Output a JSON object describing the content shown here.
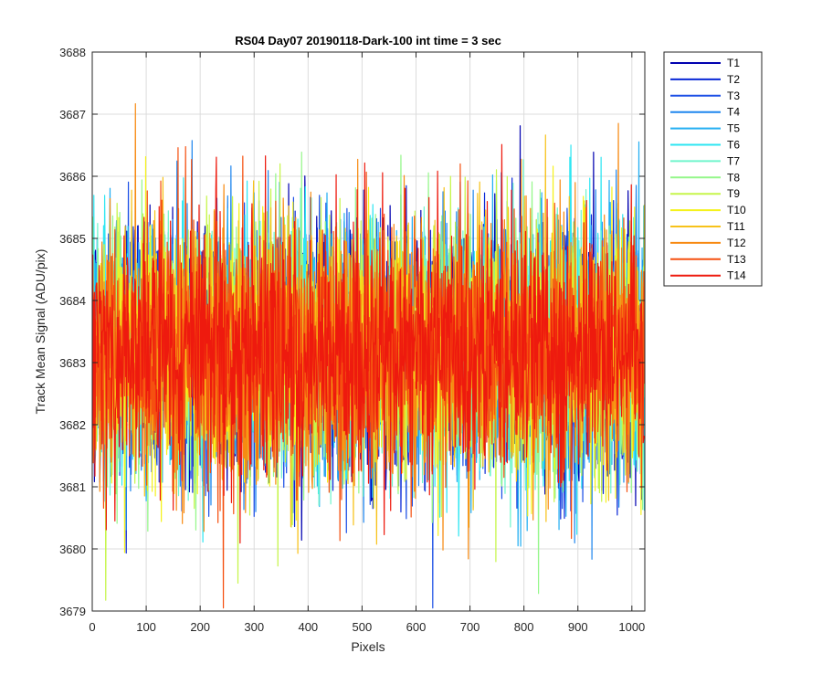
{
  "chart_data": {
    "type": "line",
    "title": "RS04 Day07 20190118-Dark-100 int time = 3 sec",
    "xlabel": "Pixels",
    "ylabel": "Track Mean Signal (ADU/pix)",
    "xlim": [
      0,
      1024
    ],
    "ylim": [
      3679,
      3688
    ],
    "xticks": [
      0,
      100,
      200,
      300,
      400,
      500,
      600,
      700,
      800,
      900,
      1000
    ],
    "yticks": [
      3679,
      3680,
      3681,
      3682,
      3683,
      3684,
      3685,
      3686,
      3687,
      3688
    ],
    "grid": true,
    "legend_placement": "outside-right",
    "series_mean": 3683.2,
    "series_noise_sd": 1.0,
    "n_points": 1024,
    "series": [
      {
        "name": "T1",
        "color": "#0000b0"
      },
      {
        "name": "T2",
        "color": "#0a28d6"
      },
      {
        "name": "T3",
        "color": "#1b4fe6"
      },
      {
        "name": "T4",
        "color": "#1f86ee"
      },
      {
        "name": "T5",
        "color": "#22aef2"
      },
      {
        "name": "T6",
        "color": "#2ee6f2"
      },
      {
        "name": "T7",
        "color": "#6ff5cc"
      },
      {
        "name": "T8",
        "color": "#95f78a"
      },
      {
        "name": "T9",
        "color": "#c6f54a"
      },
      {
        "name": "T10",
        "color": "#f5f21c"
      },
      {
        "name": "T11",
        "color": "#f7c21a"
      },
      {
        "name": "T12",
        "color": "#f78a12"
      },
      {
        "name": "T13",
        "color": "#f55010"
      },
      {
        "name": "T14",
        "color": "#ee1a0e"
      }
    ]
  }
}
